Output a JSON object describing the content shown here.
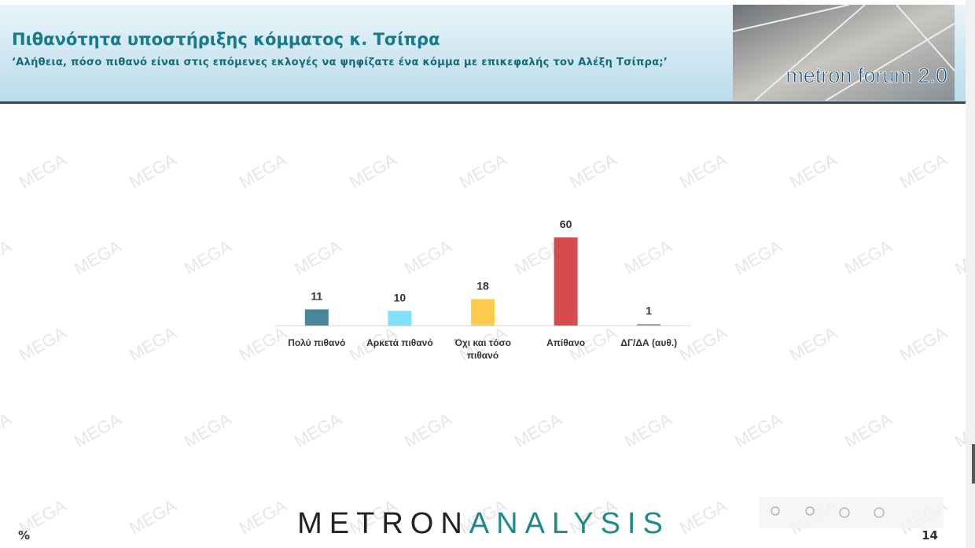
{
  "chart_data": {
    "type": "bar",
    "title": "Πιθανότητα υποστήριξης κόμματος κ. Τσίπρα",
    "subtitle": "‘Αλήθεια, πόσο πιθανό είναι στις επόμενες εκλογές να ψηφίζατε ένα κόμμα με επικεφαλής τον Αλέξη Τσίπρα;’",
    "categories": [
      "Πολύ πιθανό",
      "Αρκετά πιθανό",
      "Όχι και τόσο πιθανό",
      "Απίθανο",
      "ΔΓ/ΔΑ (αυθ.)"
    ],
    "values": [
      11,
      10,
      18,
      60,
      1
    ],
    "colors": [
      "#4a8699",
      "#7fe0f9",
      "#ffcc4f",
      "#d64b4b",
      "#9a9a9a"
    ],
    "unit_label": "%"
  },
  "logo_text": "metron forum 2.0",
  "brand": {
    "left": "METRON",
    "right": "ANALYSIS"
  },
  "page_number": "14",
  "watermark": "MEGA"
}
